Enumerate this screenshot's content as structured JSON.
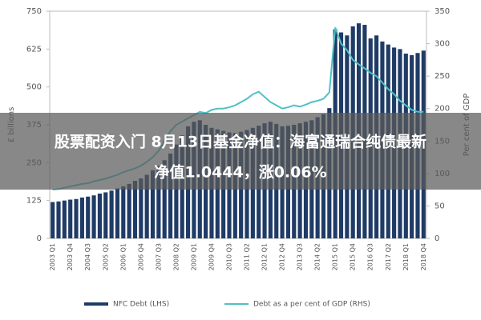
{
  "chart_data": {
    "type": "bar",
    "y_label": "£ billions",
    "y2_label": "Per cent of GDP",
    "categories": [
      "2003 Q1",
      null,
      null,
      "2003 Q4",
      null,
      null,
      "2004 Q3",
      null,
      null,
      "2005 Q2",
      null,
      null,
      "2006 Q1",
      null,
      null,
      "2006 Q4",
      null,
      null,
      "2007 Q3",
      null,
      null,
      "2008 Q2",
      null,
      null,
      "2009 Q1",
      null,
      null,
      "2009 Q4",
      null,
      null,
      "2010 Q3",
      null,
      null,
      "2011 Q2",
      null,
      null,
      "2012 Q1",
      null,
      null,
      "2012 Q4",
      null,
      null,
      "2013 Q3",
      null,
      null,
      "2014 Q2",
      null,
      null,
      "2015 Q1",
      null,
      null,
      "2015 Q4",
      null,
      null,
      "2016 Q3",
      null,
      null,
      "2017 Q2",
      null,
      null,
      "2018 Q1",
      null,
      null,
      "2018 Q4"
    ],
    "series": [
      {
        "name": "NFC Debt (LHS)",
        "color": "#1f3b66",
        "values": [
          120,
          122,
          125,
          128,
          130,
          135,
          138,
          142,
          148,
          152,
          158,
          165,
          172,
          180,
          190,
          198,
          210,
          225,
          240,
          258,
          280,
          310,
          340,
          370,
          385,
          390,
          375,
          365,
          360,
          355,
          350,
          348,
          352,
          358,
          365,
          372,
          380,
          385,
          378,
          370,
          372,
          375,
          380,
          385,
          390,
          400,
          410,
          430,
          690,
          680,
          670,
          700,
          710,
          705,
          660,
          670,
          650,
          640,
          630,
          625,
          610,
          605,
          612,
          620
        ]
      },
      {
        "name": "Debt as a per cent of GDP (RHS)",
        "color": "#4fc1c6",
        "type": "line",
        "axis": "y2",
        "values": [
          75,
          76,
          78,
          80,
          82,
          84,
          85,
          88,
          90,
          92,
          95,
          98,
          102,
          105,
          108,
          112,
          118,
          125,
          135,
          150,
          165,
          175,
          180,
          185,
          190,
          195,
          193,
          198,
          200,
          200,
          202,
          205,
          210,
          215,
          222,
          226,
          218,
          210,
          205,
          200,
          202,
          205,
          203,
          206,
          210,
          212,
          215,
          225,
          325,
          300,
          290,
          275,
          268,
          262,
          255,
          250,
          240,
          230,
          222,
          212,
          205,
          198,
          195,
          195
        ]
      }
    ],
    "ylim": [
      0,
      750
    ],
    "yticks": [
      0,
      125,
      250,
      375,
      500,
      625,
      750
    ],
    "y2lim": [
      0,
      350
    ],
    "y2ticks": [
      0,
      50,
      100,
      150,
      200,
      250,
      300,
      350
    ]
  },
  "overlay": {
    "lines": [
      "股票配资入门 8月13日基金净值：海富通瑞合纯债最新",
      "净值1.0444，涨0.06%"
    ]
  }
}
